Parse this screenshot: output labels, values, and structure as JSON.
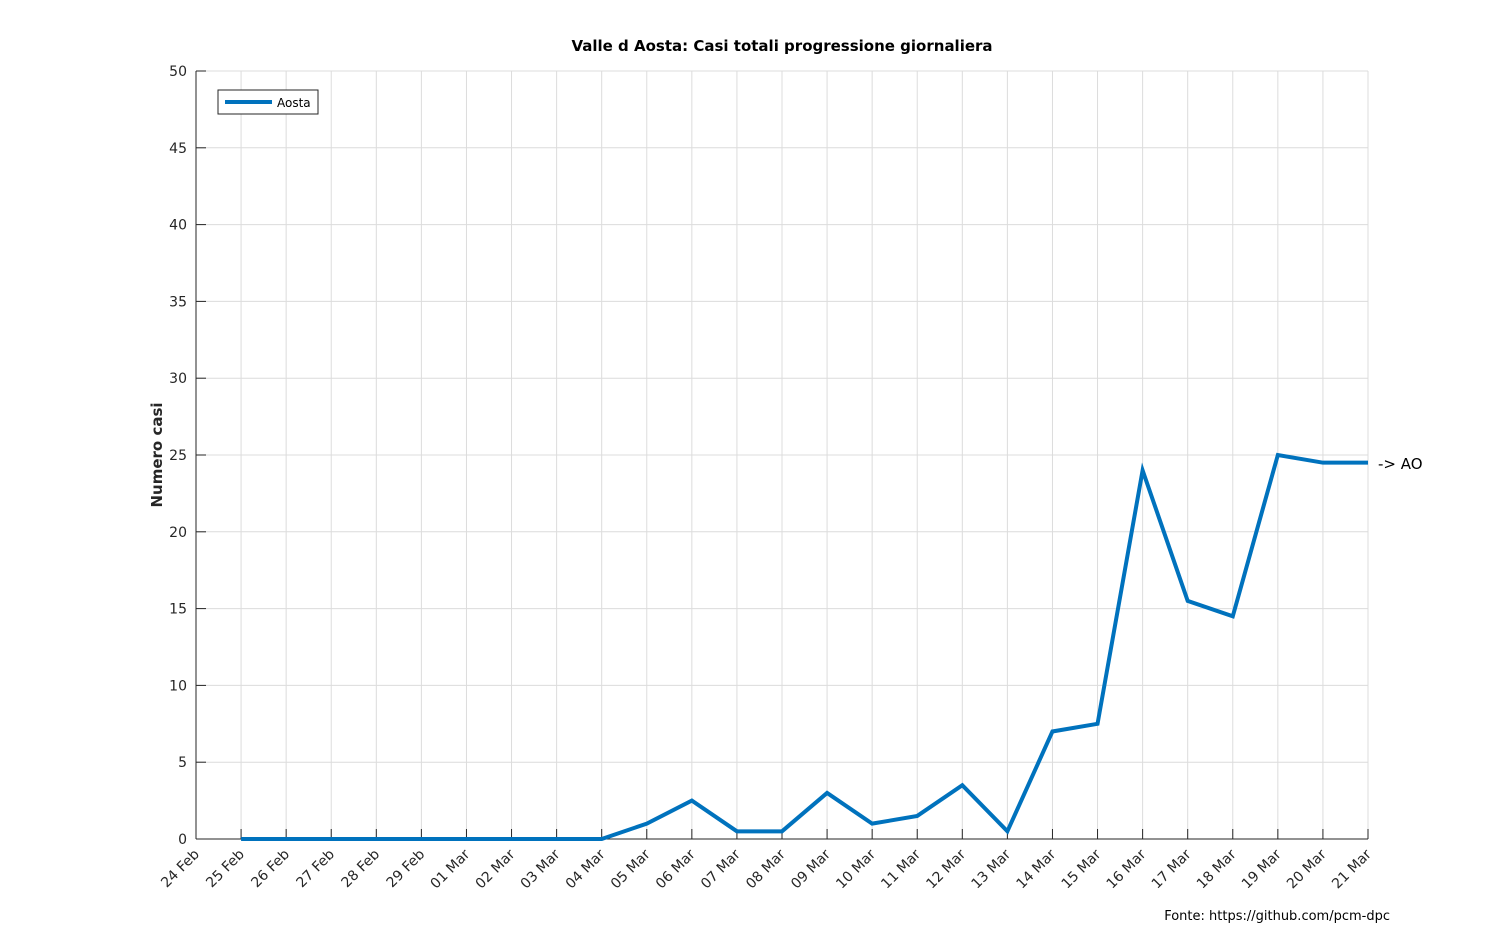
{
  "chart_data": {
    "type": "line",
    "title": "Valle d Aosta: Casi totali progressione giornaliera",
    "xlabel": "",
    "ylabel": "Numero casi",
    "categories": [
      "24 Feb",
      "25 Feb",
      "26 Feb",
      "27 Feb",
      "28 Feb",
      "29 Feb",
      "01 Mar",
      "02 Mar",
      "03 Mar",
      "04 Mar",
      "05 Mar",
      "06 Mar",
      "07 Mar",
      "08 Mar",
      "09 Mar",
      "10 Mar",
      "11 Mar",
      "12 Mar",
      "13 Mar",
      "14 Mar",
      "15 Mar",
      "16 Mar",
      "17 Mar",
      "18 Mar",
      "19 Mar",
      "20 Mar",
      "21 Mar"
    ],
    "series": [
      {
        "name": "Aosta",
        "color": "#0072BD",
        "x": [
          "25 Feb",
          "26 Feb",
          "27 Feb",
          "28 Feb",
          "29 Feb",
          "01 Mar",
          "02 Mar",
          "03 Mar",
          "04 Mar",
          "05 Mar",
          "06 Mar",
          "07 Mar",
          "08 Mar",
          "09 Mar",
          "10 Mar",
          "11 Mar",
          "12 Mar",
          "13 Mar",
          "14 Mar",
          "15 Mar",
          "16 Mar",
          "17 Mar",
          "18 Mar",
          "19 Mar",
          "20 Mar",
          "21 Mar"
        ],
        "values": [
          0,
          0,
          0,
          0,
          0,
          0,
          0,
          0,
          0,
          1,
          2.5,
          0.5,
          0.5,
          3,
          1,
          1.5,
          3.5,
          0.5,
          7,
          7.5,
          24,
          15.5,
          14.5,
          25,
          24.5,
          24.5
        ]
      }
    ],
    "ylim": [
      0,
      50
    ],
    "yticks": [
      0,
      5,
      10,
      15,
      20,
      25,
      30,
      35,
      40,
      45,
      50
    ],
    "grid": true,
    "legend_position": "top-left",
    "end_label": "-> AO",
    "source_text": "Fonte: https://github.com/pcm-dpc"
  }
}
